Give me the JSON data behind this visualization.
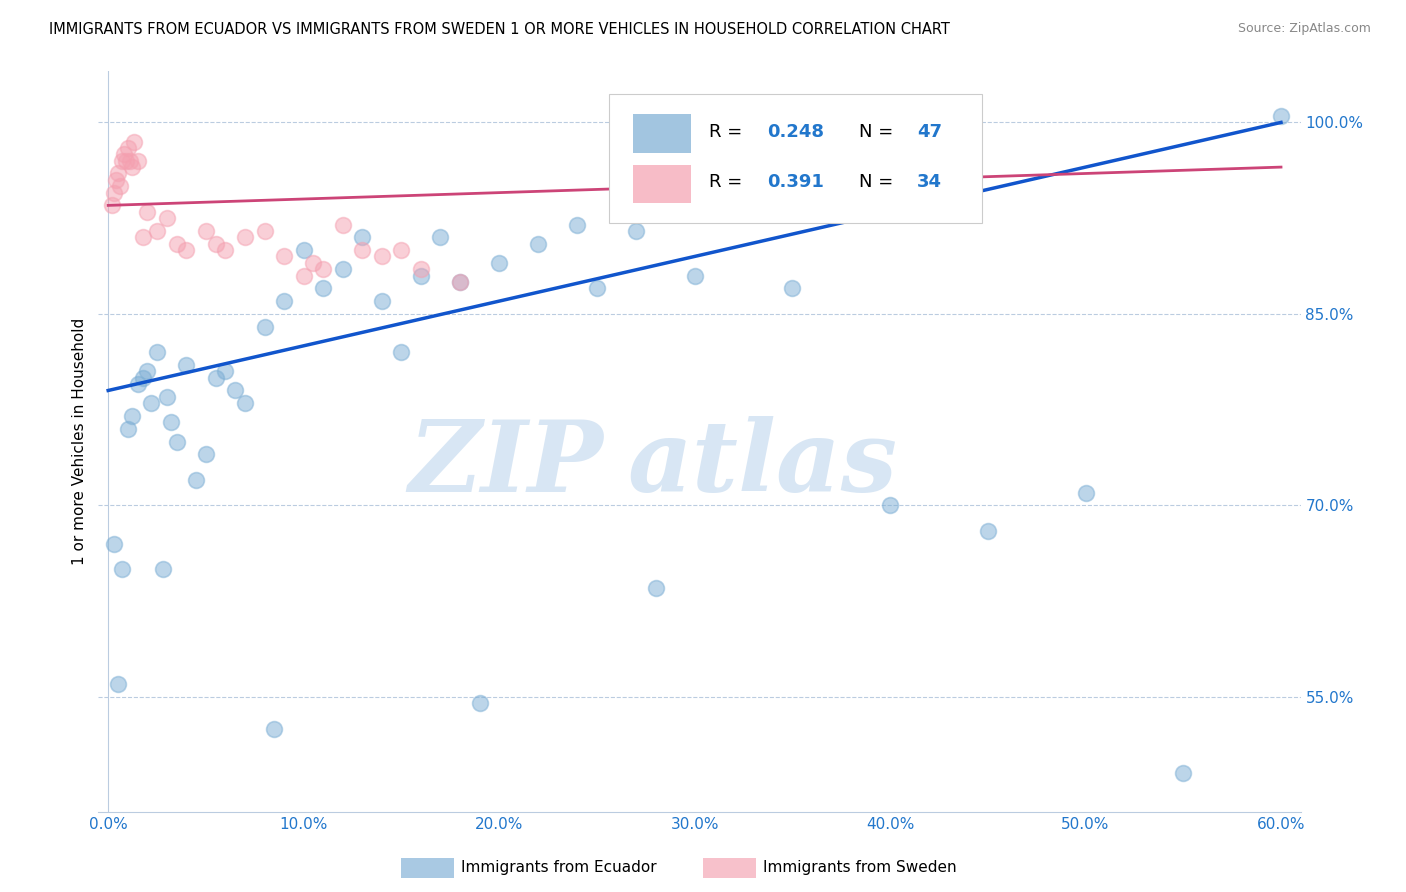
{
  "title": "IMMIGRANTS FROM ECUADOR VS IMMIGRANTS FROM SWEDEN 1 OR MORE VEHICLES IN HOUSEHOLD CORRELATION CHART",
  "source": "Source: ZipAtlas.com",
  "ylabel": "1 or more Vehicles in Household",
  "xlim": [
    -0.5,
    61
  ],
  "ylim": [
    46,
    104
  ],
  "xtick_labels": [
    "0.0%",
    "10.0%",
    "20.0%",
    "30.0%",
    "40.0%",
    "50.0%",
    "60.0%"
  ],
  "xtick_values": [
    0,
    10,
    20,
    30,
    40,
    50,
    60
  ],
  "ytick_labels": [
    "55.0%",
    "70.0%",
    "85.0%",
    "100.0%"
  ],
  "ytick_values": [
    55.0,
    70.0,
    85.0,
    100.0
  ],
  "legend_label1": "Immigrants from Ecuador",
  "legend_label2": "Immigrants from Sweden",
  "R_ecuador": 0.248,
  "N_ecuador": 47,
  "R_sweden": 0.391,
  "N_sweden": 34,
  "blue_color": "#7BADD4",
  "blue_line_color": "#1155CC",
  "pink_color": "#F4A0B0",
  "pink_line_color": "#CC4477",
  "watermark_zip": "ZIP",
  "watermark_atlas": "atlas",
  "ecuador_x": [
    0.3,
    0.5,
    0.7,
    1.0,
    1.2,
    1.5,
    1.8,
    2.0,
    2.2,
    2.5,
    2.8,
    3.0,
    3.2,
    3.5,
    4.0,
    4.5,
    5.0,
    5.5,
    6.0,
    6.5,
    7.0,
    8.0,
    8.5,
    9.0,
    10.0,
    11.0,
    12.0,
    13.0,
    14.0,
    15.0,
    16.0,
    17.0,
    18.0,
    19.0,
    20.0,
    22.0,
    24.0,
    25.0,
    27.0,
    28.0,
    30.0,
    35.0,
    40.0,
    45.0,
    50.0,
    55.0,
    60.0
  ],
  "ecuador_y": [
    67.0,
    56.0,
    65.0,
    76.0,
    77.0,
    79.5,
    80.0,
    80.5,
    78.0,
    82.0,
    65.0,
    78.5,
    76.5,
    75.0,
    81.0,
    72.0,
    74.0,
    80.0,
    80.5,
    79.0,
    78.0,
    84.0,
    52.5,
    86.0,
    90.0,
    87.0,
    88.5,
    91.0,
    86.0,
    82.0,
    88.0,
    91.0,
    87.5,
    54.5,
    89.0,
    90.5,
    92.0,
    87.0,
    91.5,
    63.5,
    88.0,
    87.0,
    70.0,
    68.0,
    71.0,
    49.0,
    100.5
  ],
  "sweden_x": [
    0.2,
    0.3,
    0.4,
    0.5,
    0.6,
    0.7,
    0.8,
    0.9,
    1.0,
    1.1,
    1.2,
    1.3,
    1.5,
    1.8,
    2.0,
    2.5,
    3.0,
    3.5,
    4.0,
    5.0,
    5.5,
    6.0,
    7.0,
    8.0,
    9.0,
    10.0,
    10.5,
    11.0,
    12.0,
    13.0,
    14.0,
    15.0,
    16.0,
    18.0
  ],
  "sweden_y": [
    93.5,
    94.5,
    95.5,
    96.0,
    95.0,
    97.0,
    97.5,
    97.0,
    98.0,
    97.0,
    96.5,
    98.5,
    97.0,
    91.0,
    93.0,
    91.5,
    92.5,
    90.5,
    90.0,
    91.5,
    90.5,
    90.0,
    91.0,
    91.5,
    89.5,
    88.0,
    89.0,
    88.5,
    92.0,
    90.0,
    89.5,
    90.0,
    88.5,
    87.5
  ],
  "blue_trendline": [
    79.0,
    100.0
  ],
  "pink_trendline": [
    93.5,
    96.5
  ]
}
